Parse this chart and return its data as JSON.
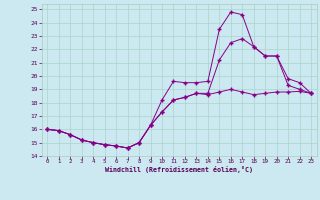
{
  "xlabel": "Windchill (Refroidissement éolien,°C)",
  "background_color": "#cce8f0",
  "grid_color": "#aad4cc",
  "line_color": "#880088",
  "xlim": [
    -0.5,
    23.5
  ],
  "ylim": [
    14,
    25.4
  ],
  "xticks": [
    0,
    1,
    2,
    3,
    4,
    5,
    6,
    7,
    8,
    9,
    10,
    11,
    12,
    13,
    14,
    15,
    16,
    17,
    18,
    19,
    20,
    21,
    22,
    23
  ],
  "yticks": [
    14,
    15,
    16,
    17,
    18,
    19,
    20,
    21,
    22,
    23,
    24,
    25
  ],
  "line1_x": [
    0,
    1,
    2,
    3,
    4,
    5,
    6,
    7,
    8,
    9,
    10,
    11,
    12,
    13,
    14,
    15,
    16,
    17,
    18,
    19,
    20,
    21,
    22,
    23
  ],
  "line1_y": [
    16.0,
    15.9,
    15.6,
    15.2,
    15.0,
    14.85,
    14.75,
    14.6,
    15.0,
    16.3,
    17.3,
    18.2,
    18.4,
    18.7,
    18.6,
    18.8,
    19.0,
    18.8,
    18.6,
    18.7,
    18.8,
    18.8,
    18.85,
    18.7
  ],
  "line2_x": [
    0,
    1,
    2,
    3,
    4,
    5,
    6,
    7,
    8,
    9,
    10,
    11,
    12,
    13,
    14,
    15,
    16,
    17,
    18,
    19,
    20,
    21,
    22,
    23
  ],
  "line2_y": [
    16.0,
    15.9,
    15.6,
    15.2,
    15.0,
    14.85,
    14.75,
    14.6,
    15.0,
    16.3,
    18.2,
    19.6,
    19.5,
    19.5,
    19.6,
    23.5,
    24.8,
    24.6,
    22.2,
    21.5,
    21.5,
    19.8,
    19.5,
    18.7
  ],
  "line3_x": [
    0,
    1,
    2,
    3,
    4,
    5,
    6,
    7,
    8,
    9,
    10,
    11,
    12,
    13,
    14,
    15,
    16,
    17,
    18,
    19,
    20,
    21,
    22,
    23
  ],
  "line3_y": [
    16.0,
    15.9,
    15.6,
    15.2,
    15.0,
    14.85,
    14.75,
    14.6,
    15.0,
    16.3,
    17.3,
    18.2,
    18.4,
    18.7,
    18.7,
    21.2,
    22.5,
    22.8,
    22.2,
    21.5,
    21.5,
    19.3,
    19.0,
    18.7
  ]
}
